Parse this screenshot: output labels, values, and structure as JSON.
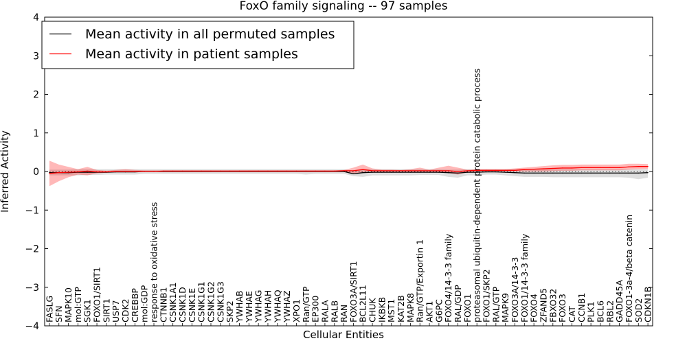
{
  "chart_data": {
    "type": "line",
    "title": "FoxO family signaling -- 97 samples",
    "xlabel": "Cellular Entities",
    "ylabel": "Inferred Activity",
    "ylim": [
      -4,
      4
    ],
    "yticks": [
      "−4",
      "−3",
      "−2",
      "−1",
      "0",
      "1",
      "2",
      "3",
      "4"
    ],
    "legend": {
      "placement": "top-left",
      "entries": [
        {
          "name": "Mean activity in all permuted samples",
          "color": "#000000"
        },
        {
          "name": "Mean activity in patient samples",
          "color": "#ff0000"
        }
      ]
    },
    "categories": [
      "FASLG",
      "SFN",
      "MAPK10",
      "mol:GTP",
      "SGK1",
      "FOXO1/SIRT1",
      "SIRT1",
      "USP7",
      "CDK2",
      "CREBBP",
      "mol:GDP",
      "response to oxidative stress",
      "CTNNB1",
      "CSNK1A1",
      "CSNK1D",
      "CSNK1E",
      "CSNK1G1",
      "CSNK1G2",
      "CSNK1G3",
      "SKP2",
      "YWHAB",
      "YWHAE",
      "YWHAG",
      "YWHAH",
      "YWHAQ",
      "YWHAZ",
      "XPO1",
      "Ran/GTP",
      "EP300",
      "RALA",
      "RALB",
      "RAN",
      "FOXO3A/SIRT1",
      "BCL2L11",
      "CHUK",
      "IKBKB",
      "MST1",
      "KAT2B",
      "MAPK8",
      "Ran/GTP/Exportin 1",
      "AKT1",
      "G6PC",
      "FOXO4/14-3-3 family",
      "RAL/GDP",
      "FOXO1",
      "proteasomal ubiquitin-dependent protein catabolic process",
      "FOXO1/SKP2",
      "RAL/GTP",
      "MAPK9",
      "FOXO3A/14-3-3",
      "FOXO1/14-3-3 family",
      "FOXO4",
      "ZFAND5",
      "FBXO32",
      "FOXO3",
      "CAT",
      "CCNB1",
      "PLK1",
      "BCL6",
      "RBL2",
      "GADD45A",
      "FOXO1-3a-4/beta catenin",
      "SOD2",
      "CDKN1B"
    ],
    "series": [
      {
        "name": "Mean activity in all permuted samples",
        "color": "#000000",
        "values": [
          -0.03,
          -0.03,
          -0.03,
          -0.02,
          -0.02,
          -0.02,
          -0.02,
          -0.01,
          -0.01,
          -0.01,
          0.0,
          0.0,
          0.0,
          0.0,
          0.0,
          0.0,
          0.0,
          0.0,
          0.0,
          0.0,
          0.0,
          0.0,
          0.0,
          0.0,
          0.0,
          0.0,
          0.0,
          0.0,
          0.0,
          0.0,
          0.0,
          0.0,
          -0.06,
          -0.03,
          -0.02,
          -0.02,
          -0.02,
          -0.02,
          -0.02,
          -0.02,
          -0.02,
          -0.02,
          -0.03,
          -0.04,
          -0.02,
          -0.02,
          -0.01,
          -0.01,
          -0.02,
          -0.03,
          -0.04,
          -0.04,
          -0.04,
          -0.04,
          -0.04,
          -0.04,
          -0.04,
          -0.04,
          -0.04,
          -0.04,
          -0.04,
          -0.04,
          -0.04,
          -0.03
        ],
        "lower": [
          -0.1,
          -0.1,
          -0.1,
          -0.1,
          -0.09,
          -0.09,
          -0.08,
          -0.08,
          -0.08,
          -0.08,
          -0.06,
          -0.06,
          -0.06,
          -0.06,
          -0.06,
          -0.06,
          -0.06,
          -0.06,
          -0.06,
          -0.06,
          -0.06,
          -0.06,
          -0.06,
          -0.06,
          -0.06,
          -0.06,
          -0.06,
          -0.08,
          -0.06,
          -0.06,
          -0.06,
          -0.06,
          -0.12,
          -0.14,
          -0.1,
          -0.1,
          -0.1,
          -0.1,
          -0.1,
          -0.09,
          -0.09,
          -0.09,
          -0.14,
          -0.16,
          -0.1,
          -0.1,
          -0.08,
          -0.08,
          -0.1,
          -0.12,
          -0.14,
          -0.14,
          -0.14,
          -0.15,
          -0.15,
          -0.15,
          -0.15,
          -0.15,
          -0.15,
          -0.15,
          -0.15,
          -0.16,
          -0.2,
          -0.16
        ],
        "upper": [
          0.05,
          0.05,
          0.05,
          0.06,
          0.06,
          0.06,
          0.06,
          0.06,
          0.06,
          0.06,
          0.06,
          0.06,
          0.06,
          0.06,
          0.06,
          0.06,
          0.06,
          0.06,
          0.06,
          0.06,
          0.06,
          0.06,
          0.06,
          0.06,
          0.06,
          0.06,
          0.06,
          0.06,
          0.06,
          0.06,
          0.06,
          0.06,
          0.02,
          0.06,
          0.06,
          0.06,
          0.06,
          0.06,
          0.06,
          0.06,
          0.06,
          0.06,
          0.05,
          0.05,
          0.06,
          0.06,
          0.06,
          0.06,
          0.06,
          0.06,
          0.06,
          0.06,
          0.06,
          0.06,
          0.06,
          0.06,
          0.06,
          0.06,
          0.06,
          0.06,
          0.06,
          0.06,
          0.06,
          0.06
        ]
      },
      {
        "name": "Mean activity in patient samples",
        "color": "#ff0000",
        "values": [
          -0.05,
          -0.03,
          -0.02,
          -0.01,
          0.01,
          -0.01,
          -0.01,
          0.0,
          0.0,
          0.0,
          0.0,
          0.0,
          0.01,
          0.01,
          0.01,
          0.01,
          0.01,
          0.01,
          0.01,
          0.01,
          0.01,
          0.01,
          0.01,
          0.01,
          0.01,
          0.01,
          0.01,
          0.01,
          0.01,
          0.01,
          0.01,
          0.02,
          0.02,
          0.05,
          0.02,
          0.02,
          0.02,
          0.02,
          0.02,
          0.02,
          0.02,
          0.02,
          0.02,
          0.0,
          0.02,
          0.03,
          0.03,
          0.03,
          0.03,
          0.03,
          0.05,
          0.06,
          0.07,
          0.08,
          0.09,
          0.09,
          0.1,
          0.1,
          0.1,
          0.1,
          0.1,
          0.12,
          0.13,
          0.13
        ],
        "lower": [
          -0.38,
          -0.25,
          -0.15,
          -0.08,
          -0.1,
          -0.05,
          -0.03,
          -0.02,
          -0.02,
          -0.02,
          -0.01,
          -0.01,
          0.0,
          0.0,
          0.0,
          0.0,
          0.0,
          0.0,
          0.0,
          0.0,
          0.0,
          0.0,
          0.0,
          0.0,
          0.0,
          0.0,
          0.0,
          0.0,
          0.0,
          0.0,
          0.0,
          0.0,
          -0.06,
          -0.02,
          0.0,
          0.0,
          0.0,
          0.0,
          0.0,
          0.0,
          0.0,
          0.0,
          -0.04,
          -0.08,
          -0.02,
          0.0,
          0.0,
          0.0,
          0.0,
          0.0,
          0.0,
          0.0,
          0.0,
          0.01,
          0.02,
          0.02,
          0.03,
          0.03,
          0.03,
          0.03,
          0.03,
          0.05,
          0.06,
          0.07
        ],
        "upper": [
          0.28,
          0.18,
          0.12,
          0.06,
          0.12,
          0.04,
          0.02,
          0.04,
          0.06,
          0.04,
          0.03,
          0.03,
          0.03,
          0.03,
          0.03,
          0.03,
          0.03,
          0.03,
          0.03,
          0.03,
          0.03,
          0.03,
          0.03,
          0.03,
          0.03,
          0.03,
          0.03,
          0.03,
          0.03,
          0.03,
          0.03,
          0.04,
          0.1,
          0.18,
          0.08,
          0.05,
          0.05,
          0.04,
          0.06,
          0.1,
          0.05,
          0.1,
          0.15,
          0.1,
          0.05,
          0.06,
          0.06,
          0.06,
          0.06,
          0.08,
          0.1,
          0.12,
          0.14,
          0.16,
          0.17,
          0.17,
          0.18,
          0.18,
          0.18,
          0.18,
          0.18,
          0.2,
          0.2,
          0.19
        ]
      }
    ]
  }
}
